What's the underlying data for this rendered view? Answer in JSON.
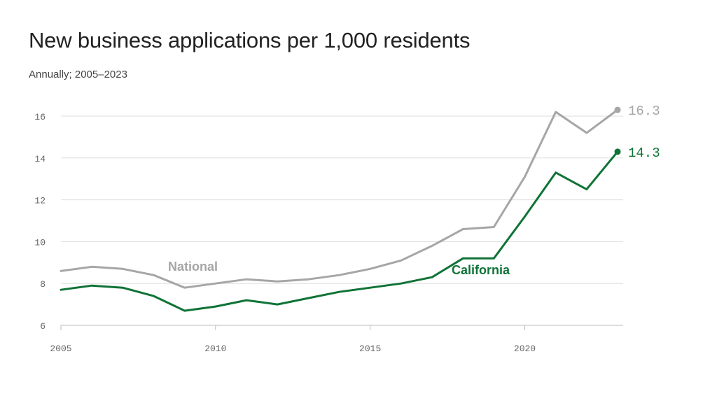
{
  "title": "New business applications per 1,000 residents",
  "subtitle": "Annually; 2005–2023",
  "colors": {
    "national": "#a6a6a6",
    "california": "#0f7337",
    "grid": "#dddddd",
    "axis": "#bbbbbb"
  },
  "chart_data": {
    "type": "line",
    "x": [
      2005,
      2006,
      2007,
      2008,
      2009,
      2010,
      2011,
      2012,
      2013,
      2014,
      2015,
      2016,
      2017,
      2018,
      2019,
      2020,
      2021,
      2022,
      2023
    ],
    "series": [
      {
        "name": "National",
        "end_label": "16.3",
        "values": [
          8.6,
          8.8,
          8.7,
          8.4,
          7.8,
          8.0,
          8.2,
          8.1,
          8.2,
          8.4,
          8.7,
          9.1,
          9.8,
          10.6,
          10.7,
          13.1,
          16.2,
          15.2,
          16.3
        ]
      },
      {
        "name": "California",
        "end_label": "14.3",
        "values": [
          7.7,
          7.9,
          7.8,
          7.4,
          6.7,
          6.9,
          7.2,
          7.0,
          7.3,
          7.6,
          7.8,
          8.0,
          8.3,
          9.2,
          9.2,
          11.2,
          13.3,
          12.5,
          14.3
        ]
      }
    ],
    "xticks": [
      2005,
      2010,
      2015,
      2020
    ],
    "xtick_labels": [
      "2005",
      "2010",
      "2015",
      "2020"
    ],
    "yticks": [
      6,
      8,
      10,
      12,
      14,
      16
    ],
    "ytick_labels": [
      "6",
      "8",
      "10",
      "12",
      "14",
      "16"
    ],
    "xlim": [
      2005,
      2023
    ],
    "ylim": [
      6,
      16.5
    ],
    "grid": true,
    "legend": "inline labels"
  }
}
